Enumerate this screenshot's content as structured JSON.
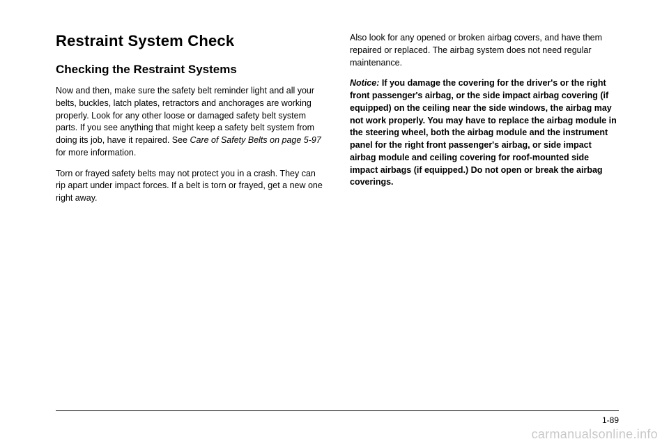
{
  "left": {
    "h1": "Restraint System Check",
    "h2": "Checking the Restraint Systems",
    "p1a": "Now and then, make sure the safety belt reminder light and all your belts, buckles, latch plates, retractors and anchorages are working properly. Look for any other loose or damaged safety belt system parts. If you see anything that might keep a safety belt system from doing its job, have it repaired. See ",
    "p1_ref": "Care of Safety Belts on page 5-97",
    "p1b": " for more information.",
    "p2": "Torn or frayed safety belts may not protect you in a crash. They can rip apart under impact forces. If a belt is torn or frayed, get a new one right away."
  },
  "right": {
    "p1": "Also look for any opened or broken airbag covers, and have them repaired or replaced. The airbag system does not need regular maintenance.",
    "notice_label": "Notice:",
    "notice_body": "If you damage the covering for the driver's or the right front passenger's airbag, or the side impact airbag covering (if equipped) on the ceiling near the side windows, the airbag may not work properly. You may have to replace the airbag module in the steering wheel, both the airbag module and the instrument panel for the right front passenger's airbag, or side impact airbag module and ceiling covering for roof-mounted side impact airbags (if equipped.) Do not open or break the airbag coverings."
  },
  "pagenum": "1-89",
  "watermark": "carmanualsonline.info"
}
